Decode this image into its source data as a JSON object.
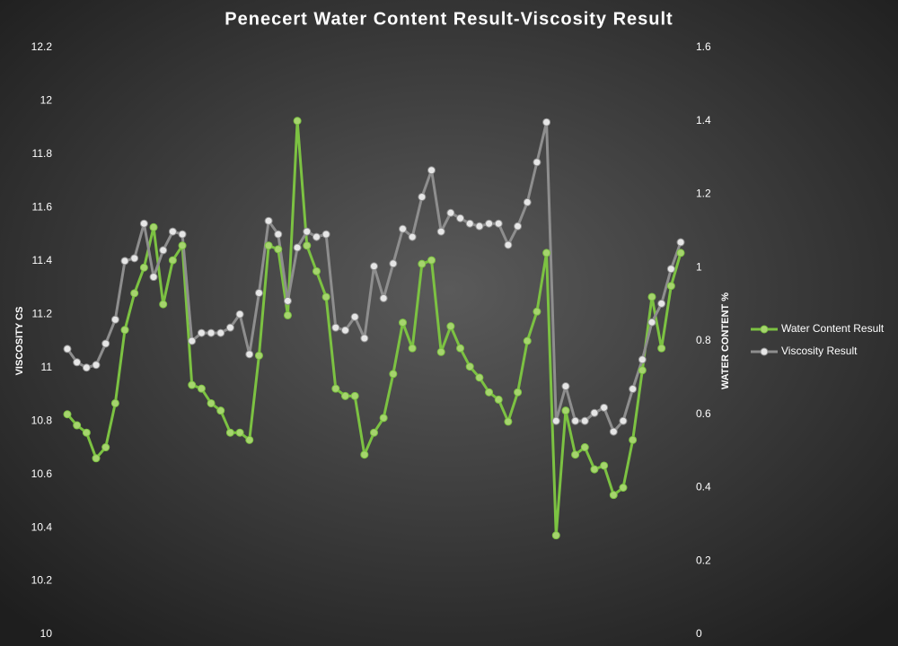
{
  "chart_data": {
    "type": "line",
    "title": "Penecert Water Content Result-Viscosity Result",
    "y_label": "VISCOSITY CS",
    "y2_label": "WATER CONTENT %",
    "ylim": [
      10,
      12.2
    ],
    "yticks": [
      10,
      10.2,
      10.4,
      10.6,
      10.8,
      11,
      11.2,
      11.4,
      11.6,
      11.8,
      12,
      12.2
    ],
    "y2lim": [
      0,
      1.6
    ],
    "y2ticks": [
      0,
      0.2,
      0.4,
      0.6,
      0.8,
      1,
      1.2,
      1.4,
      1.6
    ],
    "grid": false,
    "legend": "right",
    "series": [
      {
        "name": "Water Content Result",
        "color": "#7cc242",
        "axis": "y2",
        "values": [
          0.6,
          0.57,
          0.55,
          0.48,
          0.51,
          0.63,
          0.83,
          0.93,
          1.0,
          1.11,
          0.9,
          1.02,
          1.06,
          0.68,
          0.67,
          0.63,
          0.61,
          0.55,
          0.55,
          0.53,
          0.76,
          1.06,
          1.05,
          0.87,
          1.4,
          1.06,
          0.99,
          0.92,
          0.67,
          0.65,
          0.65,
          0.49,
          0.55,
          0.59,
          0.71,
          0.85,
          0.78,
          1.01,
          1.02,
          0.77,
          0.84,
          0.78,
          0.73,
          0.7,
          0.66,
          0.64,
          0.58,
          0.66,
          0.8,
          0.88,
          1.04,
          0.27,
          0.61,
          0.49,
          0.51,
          0.45,
          0.46,
          0.38,
          0.4,
          0.53,
          0.72,
          0.92,
          0.78,
          0.95,
          1.04
        ]
      },
      {
        "name": "Viscosity Result",
        "color": "#8e8e8e",
        "axis": "y",
        "values": [
          11.07,
          11.02,
          11.0,
          11.01,
          11.09,
          11.18,
          11.4,
          11.41,
          11.54,
          11.34,
          11.44,
          11.51,
          11.5,
          11.1,
          11.13,
          11.13,
          11.13,
          11.15,
          11.2,
          11.05,
          11.28,
          11.55,
          11.5,
          11.25,
          11.45,
          11.51,
          11.49,
          11.5,
          11.15,
          11.14,
          11.19,
          11.11,
          11.38,
          11.26,
          11.39,
          11.52,
          11.49,
          11.64,
          11.74,
          11.51,
          11.58,
          11.56,
          11.54,
          11.53,
          11.54,
          11.54,
          11.46,
          11.53,
          11.62,
          11.77,
          11.92,
          10.8,
          10.93,
          10.8,
          10.8,
          10.83,
          10.85,
          10.76,
          10.8,
          10.92,
          11.03,
          11.17,
          11.24,
          11.37,
          11.47
        ]
      }
    ]
  }
}
